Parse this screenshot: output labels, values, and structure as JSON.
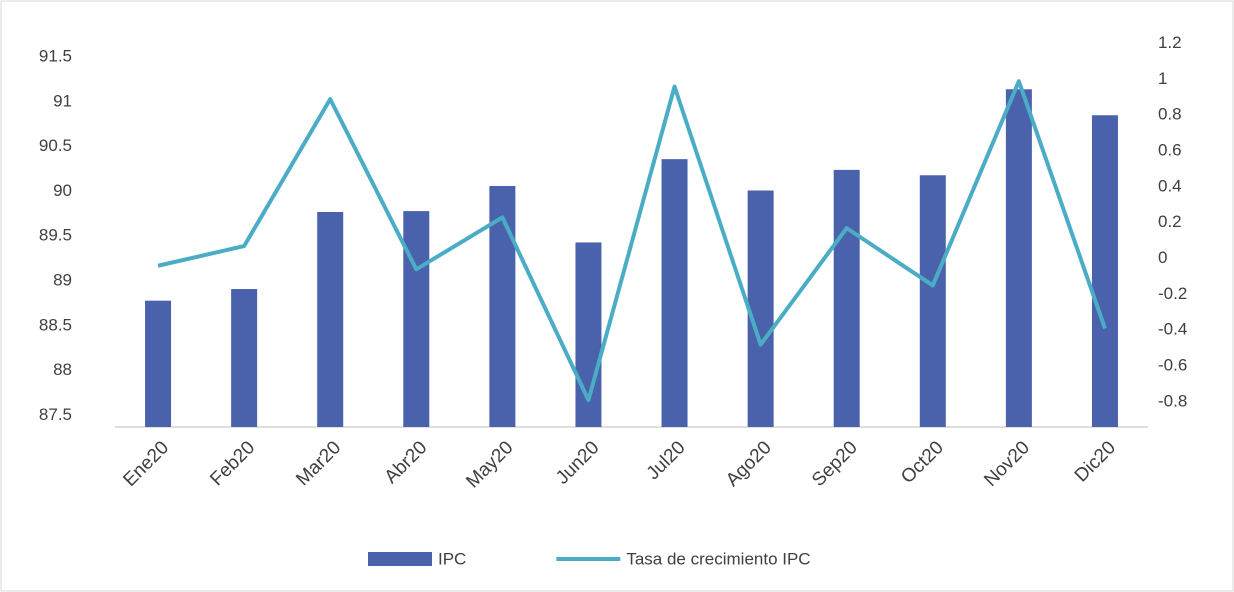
{
  "chart_data": {
    "type": "bar+line",
    "categories": [
      "Ene20",
      "Feb20",
      "Mar20",
      "Abr20",
      "May20",
      "Jun20",
      "Jul20",
      "Ago20",
      "Sep20",
      "Oct20",
      "Nov20",
      "Dic20"
    ],
    "series": [
      {
        "name": "IPC",
        "type": "bar",
        "color": "#4a62ab",
        "values": [
          88.78,
          88.91,
          89.77,
          89.78,
          90.06,
          89.43,
          90.36,
          90.01,
          90.24,
          90.18,
          91.14,
          90.85
        ]
      },
      {
        "name": "Tasa de crecimiento IPC",
        "type": "line",
        "axis": "y2",
        "color": "#4bacc6",
        "values": [
          -0.04,
          0.07,
          0.89,
          -0.06,
          0.23,
          -0.79,
          0.96,
          -0.48,
          0.17,
          -0.15,
          0.99,
          -0.39
        ]
      }
    ],
    "ylim": [
      87.37,
      91.69
    ],
    "yticks": [
      87.5,
      88,
      88.5,
      89,
      89.5,
      90,
      90.5,
      91,
      91.5
    ],
    "y2lim": [
      -0.94,
      1.22
    ],
    "y2ticks": [
      -0.8,
      -0.6,
      -0.4,
      -0.2,
      0,
      0.2,
      0.4,
      0.6,
      0.8,
      1,
      1.2
    ],
    "grid": false,
    "legend": "bottom"
  }
}
